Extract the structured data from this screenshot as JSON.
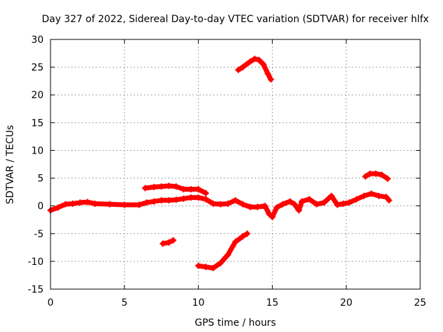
{
  "chart_data": {
    "type": "scatter",
    "title": "Day 327 of 2022, Sidereal Day-to-day VTEC variation (SDTVAR) for receiver hlfx",
    "xlabel": "GPS time / hours",
    "ylabel": "SDTVAR / TECUs",
    "xlim": [
      0,
      25
    ],
    "ylim": [
      -15,
      30
    ],
    "xticks": [
      0,
      5,
      10,
      15,
      20,
      25
    ],
    "yticks": [
      -15,
      -10,
      -5,
      0,
      5,
      10,
      15,
      20,
      25,
      30
    ],
    "grid": true,
    "marker": "plus",
    "series_color": "#ff0000",
    "series": [
      {
        "name": "track-main",
        "points": [
          [
            0,
            -0.8
          ],
          [
            0.5,
            -0.3
          ],
          [
            1,
            0.3
          ],
          [
            1.5,
            0.4
          ],
          [
            2,
            0.6
          ],
          [
            2.5,
            0.7
          ],
          [
            3,
            0.4
          ],
          [
            4,
            0.3
          ],
          [
            5,
            0.2
          ],
          [
            6,
            0.2
          ],
          [
            6.5,
            0.6
          ],
          [
            7,
            0.8
          ],
          [
            7.5,
            1.0
          ],
          [
            8,
            1.0
          ],
          [
            8.5,
            1.1
          ],
          [
            9,
            1.3
          ],
          [
            9.5,
            1.5
          ],
          [
            10,
            1.5
          ],
          [
            10.5,
            1.2
          ],
          [
            11,
            0.4
          ],
          [
            11.5,
            0.3
          ],
          [
            12,
            0.4
          ],
          [
            12.5,
            1.0
          ],
          [
            13,
            0.3
          ],
          [
            13.5,
            -0.2
          ],
          [
            14,
            -0.2
          ],
          [
            14.5,
            0.0
          ],
          [
            14.8,
            -1.5
          ]
        ]
      },
      {
        "name": "track-late",
        "points": [
          [
            15,
            -2.0
          ],
          [
            15.3,
            -0.3
          ],
          [
            15.7,
            0.3
          ],
          [
            16.2,
            0.8
          ],
          [
            16.5,
            0.3
          ],
          [
            16.8,
            -0.8
          ],
          [
            17,
            0.8
          ],
          [
            17.5,
            1.2
          ],
          [
            18,
            0.3
          ],
          [
            18.5,
            0.6
          ],
          [
            19,
            1.8
          ],
          [
            19.4,
            0.2
          ],
          [
            19.8,
            0.4
          ],
          [
            20.2,
            0.6
          ],
          [
            20.7,
            1.2
          ],
          [
            21.2,
            1.8
          ],
          [
            21.7,
            2.2
          ],
          [
            22.2,
            1.8
          ],
          [
            22.7,
            1.6
          ],
          [
            22.9,
            1.0
          ]
        ]
      },
      {
        "name": "track-upper-mid",
        "points": [
          [
            6.4,
            3.2
          ],
          [
            7,
            3.4
          ],
          [
            7.5,
            3.5
          ],
          [
            8,
            3.6
          ],
          [
            8.5,
            3.5
          ],
          [
            9,
            3.0
          ],
          [
            9.5,
            3.0
          ],
          [
            10,
            3.0
          ],
          [
            10.5,
            2.3
          ]
        ]
      },
      {
        "name": "track-high-arc",
        "points": [
          [
            12.7,
            24.5
          ],
          [
            13,
            25.0
          ],
          [
            13.5,
            26.0
          ],
          [
            13.8,
            26.5
          ],
          [
            14.1,
            26.3
          ],
          [
            14.4,
            25.5
          ],
          [
            14.7,
            23.8
          ],
          [
            14.9,
            22.8
          ]
        ]
      },
      {
        "name": "track-upper-right",
        "points": [
          [
            21.3,
            5.3
          ],
          [
            21.6,
            5.8
          ],
          [
            22,
            5.8
          ],
          [
            22.4,
            5.6
          ],
          [
            22.8,
            4.9
          ]
        ]
      },
      {
        "name": "track-low-arc",
        "points": [
          [
            10,
            -10.8
          ],
          [
            10.5,
            -11.0
          ],
          [
            11,
            -11.2
          ],
          [
            11.5,
            -10.3
          ],
          [
            12,
            -8.8
          ],
          [
            12.5,
            -6.5
          ],
          [
            13,
            -5.5
          ],
          [
            13.3,
            -5.0
          ]
        ]
      },
      {
        "name": "track-short-low",
        "points": [
          [
            7.6,
            -6.8
          ],
          [
            8,
            -6.6
          ],
          [
            8.3,
            -6.2
          ]
        ]
      }
    ]
  }
}
